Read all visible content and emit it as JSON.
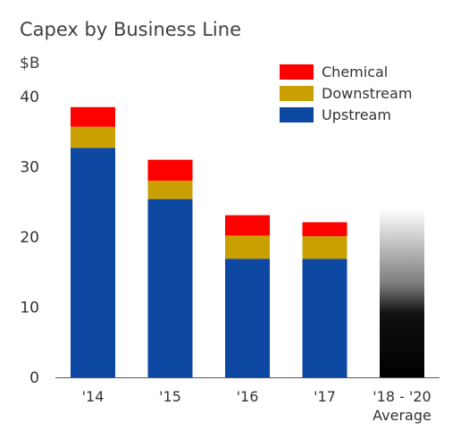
{
  "chart_data": {
    "type": "bar",
    "stacked": true,
    "title": "Capex by Business Line",
    "ylabel": "$B",
    "xlabel": "",
    "ylim": [
      0,
      40
    ],
    "yticks": [
      0,
      10,
      20,
      30,
      40
    ],
    "grid": false,
    "legend_position": "top-right",
    "categories": [
      "'14",
      "'15",
      "'16",
      "'17",
      "'18 - '20"
    ],
    "category_sublabels": [
      "",
      "",
      "",
      "",
      "Average"
    ],
    "series": [
      {
        "name": "Upstream",
        "color": "#0c47a1",
        "values": [
          32.7,
          25.4,
          16.9,
          16.9,
          null
        ]
      },
      {
        "name": "Downstream",
        "color": "#c9a000",
        "values": [
          3.0,
          2.6,
          3.3,
          3.2,
          null
        ]
      },
      {
        "name": "Chemical",
        "color": "#ff0000",
        "values": [
          2.8,
          3.0,
          2.9,
          2.0,
          null
        ]
      }
    ],
    "projection": {
      "category": "'18 - '20",
      "total": 24,
      "style": "gradient-black"
    },
    "legend_order": [
      "Chemical",
      "Downstream",
      "Upstream"
    ]
  }
}
